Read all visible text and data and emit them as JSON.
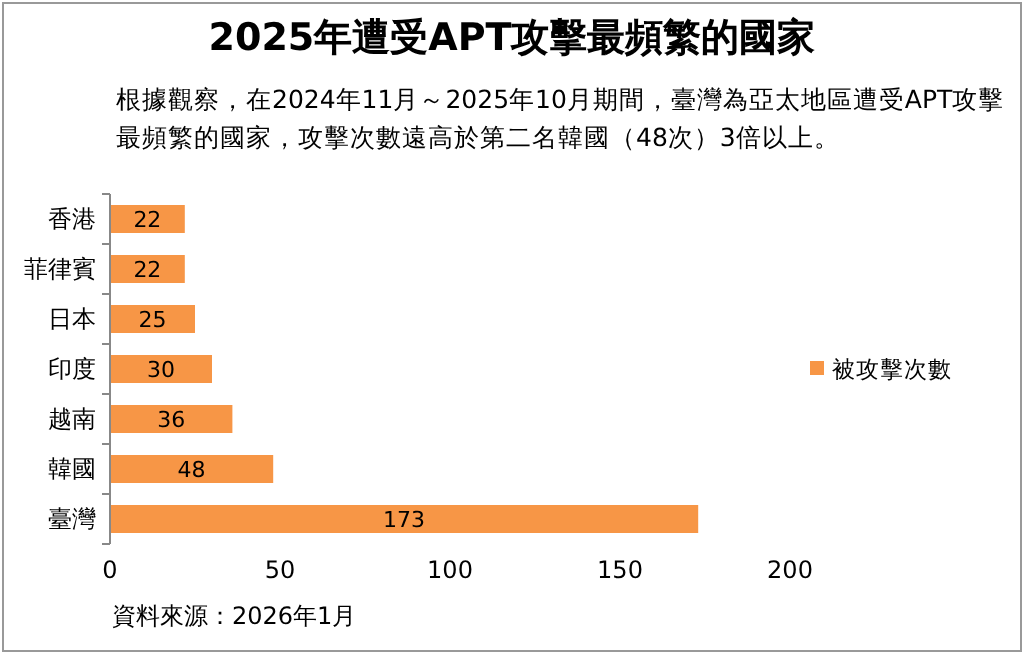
{
  "chart_data": {
    "type": "bar",
    "orientation": "horizontal",
    "title": "2025年遭受APT攻擊最頻繁的國家",
    "subtitle": "根據觀察，在2024年11月～2025年10月期間，臺灣為亞太地區遭受APT攻擊最頻繁的國家，攻擊次數遠高於第二名韓國（48次）3倍以上。",
    "categories": [
      "香港",
      "菲律賓",
      "日本",
      "印度",
      "越南",
      "韓國",
      "臺灣"
    ],
    "series": [
      {
        "name": "被攻擊次數",
        "color": "#f79646",
        "values": [
          22,
          22,
          25,
          30,
          36,
          48,
          173
        ]
      }
    ],
    "xlim": [
      0,
      200
    ],
    "xticks": [
      0,
      50,
      100,
      150,
      200
    ],
    "data_labels": true,
    "legend": "right",
    "annotations": [
      "資料來源：2026年1月"
    ]
  }
}
